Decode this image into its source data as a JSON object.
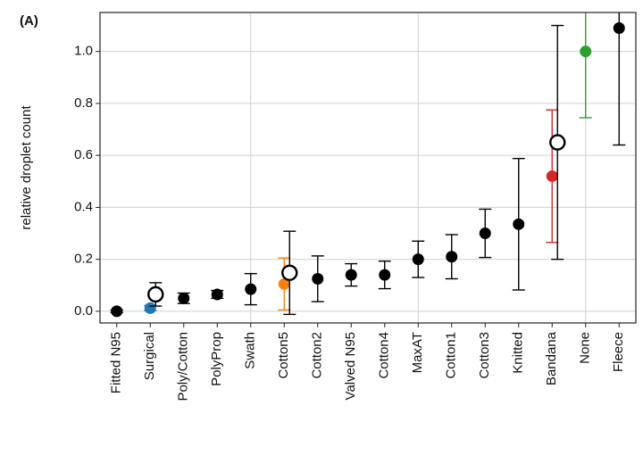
{
  "chart_data": {
    "type": "errorbar",
    "panel_label": "(A)",
    "y_label": "relative droplet count",
    "categories": [
      "Fitted N95",
      "Surgical",
      "Poly/Cotton",
      "PolyProp",
      "Swath",
      "Cotton5",
      "Cotton2",
      "Valved N95",
      "Cotton4",
      "MaxAT",
      "Cotton1",
      "Cotton3",
      "Knitted",
      "Bandana",
      "None",
      "Fleece"
    ],
    "series": [
      {
        "marker": "filled",
        "values": [
          0.0,
          0.012,
          0.05,
          0.065,
          0.085,
          0.105,
          0.125,
          0.14,
          0.14,
          0.2,
          0.21,
          0.3,
          0.335,
          0.52,
          1.0,
          1.09
        ],
        "errors": [
          0.005,
          0.01,
          0.02,
          0.015,
          0.06,
          0.1,
          0.088,
          0.043,
          0.053,
          0.07,
          0.085,
          0.093,
          0.253,
          0.255,
          0.255,
          0.45
        ],
        "colors": [
          "#000000",
          "#1f77b4",
          "#000000",
          "#000000",
          "#000000",
          "#ff7f0e",
          "#000000",
          "#000000",
          "#000000",
          "#000000",
          "#000000",
          "#000000",
          "#000000",
          "#d62728",
          "#2ca02c",
          "#000000"
        ]
      },
      {
        "marker": "open",
        "values": [
          null,
          0.065,
          null,
          null,
          null,
          0.148,
          null,
          null,
          null,
          null,
          null,
          null,
          null,
          0.65,
          null,
          null
        ],
        "errors": [
          null,
          0.045,
          null,
          null,
          null,
          0.16,
          null,
          null,
          null,
          null,
          null,
          null,
          null,
          0.45,
          null,
          null
        ],
        "colors": [
          "#000000",
          "#000000",
          "#000000",
          "#000000",
          "#000000",
          "#000000",
          "#000000",
          "#000000",
          "#000000",
          "#000000",
          "#000000",
          "#000000",
          "#000000",
          "#000000",
          "#000000",
          "#000000"
        ]
      }
    ],
    "ylim": [
      -0.045,
      1.15
    ],
    "yticks": [
      {
        "value": 0,
        "label": "0.0"
      },
      0.2,
      0.4,
      0.6,
      0.8,
      {
        "value": 1,
        "label": "1.0"
      }
    ],
    "grid": true
  }
}
